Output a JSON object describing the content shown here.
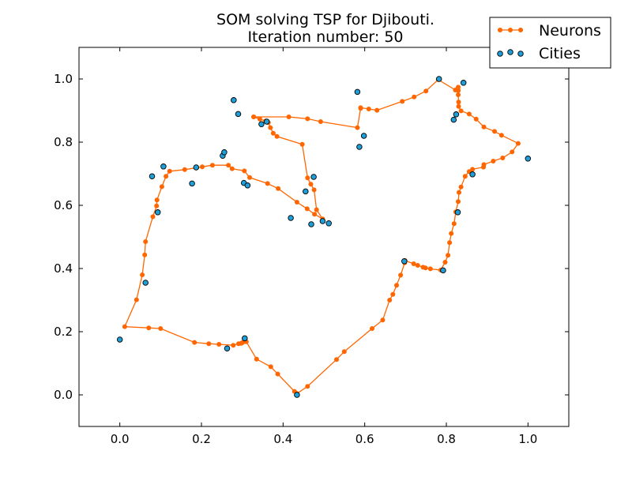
{
  "chart_data": {
    "type": "scatter",
    "title": "SOM solving TSP for Djibouti.",
    "subtitle": "Iteration number: 50",
    "xlabel": "",
    "ylabel": "",
    "xlim": [
      -0.1,
      1.1
    ],
    "ylim": [
      -0.1,
      1.1
    ],
    "x_ticks": [
      "0.0",
      "0.2",
      "0.4",
      "0.6",
      "0.8",
      "1.0"
    ],
    "y_ticks": [
      "0.0",
      "0.2",
      "0.4",
      "0.6",
      "0.8",
      "1.0"
    ],
    "grid": false,
    "legend_position": "top-right",
    "series": [
      {
        "name": "Neurons",
        "kind": "line-with-markers",
        "color": "#ff6600",
        "x": [
          0.328,
          0.343,
          0.357,
          0.364,
          0.369,
          0.376,
          0.385,
          0.447,
          0.46,
          0.468,
          0.476,
          0.482,
          0.497,
          0.477,
          0.459,
          0.434,
          0.388,
          0.362,
          0.318,
          0.305,
          0.275,
          0.266,
          0.227,
          0.202,
          0.188,
          0.159,
          0.122,
          0.113,
          0.103,
          0.091,
          0.09,
          0.081,
          0.063,
          0.061,
          0.055,
          0.041,
          0.012,
          0.071,
          0.1,
          0.183,
          0.218,
          0.243,
          0.278,
          0.291,
          0.297,
          0.299,
          0.301,
          0.31,
          0.335,
          0.37,
          0.387,
          0.428,
          0.434,
          0.46,
          0.531,
          0.55,
          0.618,
          0.644,
          0.661,
          0.669,
          0.678,
          0.688,
          0.698,
          0.699,
          0.72,
          0.73,
          0.743,
          0.749,
          0.761,
          0.786,
          0.797,
          0.804,
          0.808,
          0.812,
          0.819,
          0.823,
          0.829,
          0.831,
          0.836,
          0.846,
          0.856,
          0.864,
          0.891,
          0.892,
          0.915,
          0.938,
          0.961,
          0.976,
          0.935,
          0.918,
          0.892,
          0.873,
          0.856,
          0.836,
          0.83,
          0.83,
          0.829,
          0.829,
          0.829,
          0.829,
          0.822,
          0.78,
          0.75,
          0.721,
          0.692,
          0.63,
          0.61,
          0.59,
          0.59,
          0.582,
          0.492,
          0.46,
          0.414,
          0.328
        ],
        "y": [
          0.88,
          0.873,
          0.867,
          0.862,
          0.846,
          0.828,
          0.818,
          0.793,
          0.687,
          0.667,
          0.649,
          0.586,
          0.557,
          0.572,
          0.589,
          0.61,
          0.653,
          0.669,
          0.688,
          0.709,
          0.716,
          0.727,
          0.727,
          0.722,
          0.719,
          0.713,
          0.708,
          0.692,
          0.659,
          0.617,
          0.598,
          0.564,
          0.485,
          0.443,
          0.38,
          0.301,
          0.216,
          0.212,
          0.21,
          0.166,
          0.162,
          0.16,
          0.157,
          0.162,
          0.163,
          0.164,
          0.166,
          0.168,
          0.113,
          0.089,
          0.066,
          0.011,
          0.004,
          0.027,
          0.112,
          0.137,
          0.21,
          0.237,
          0.3,
          0.318,
          0.347,
          0.379,
          0.418,
          0.425,
          0.415,
          0.41,
          0.404,
          0.402,
          0.399,
          0.395,
          0.42,
          0.442,
          0.482,
          0.511,
          0.542,
          0.579,
          0.612,
          0.641,
          0.658,
          0.692,
          0.707,
          0.714,
          0.721,
          0.729,
          0.74,
          0.75,
          0.769,
          0.796,
          0.822,
          0.834,
          0.848,
          0.873,
          0.889,
          0.899,
          0.913,
          0.927,
          0.95,
          0.963,
          0.974,
          0.965,
          0.965,
          0.998,
          0.962,
          0.943,
          0.929,
          0.901,
          0.905,
          0.909,
          0.907,
          0.846,
          0.865,
          0.874,
          0.88,
          0.88
        ]
      },
      {
        "name": "Cities",
        "kind": "scatter",
        "color": "#1f9ed8",
        "x": [
          0.0,
          0.063,
          0.079,
          0.093,
          0.107,
          0.177,
          0.187,
          0.252,
          0.256,
          0.263,
          0.279,
          0.29,
          0.304,
          0.306,
          0.313,
          0.347,
          0.36,
          0.419,
          0.434,
          0.455,
          0.469,
          0.475,
          0.497,
          0.512,
          0.582,
          0.587,
          0.598,
          0.697,
          0.782,
          0.792,
          0.818,
          0.824,
          0.828,
          0.842,
          0.864,
          1.0
        ],
        "y": [
          0.175,
          0.355,
          0.692,
          0.578,
          0.723,
          0.669,
          0.72,
          0.757,
          0.768,
          0.147,
          0.933,
          0.889,
          0.671,
          0.179,
          0.663,
          0.857,
          0.865,
          0.56,
          0.0,
          0.644,
          0.54,
          0.69,
          0.55,
          0.543,
          0.959,
          0.785,
          0.82,
          0.423,
          1.0,
          0.394,
          0.871,
          0.888,
          0.578,
          0.988,
          0.698,
          0.748
        ]
      }
    ]
  }
}
